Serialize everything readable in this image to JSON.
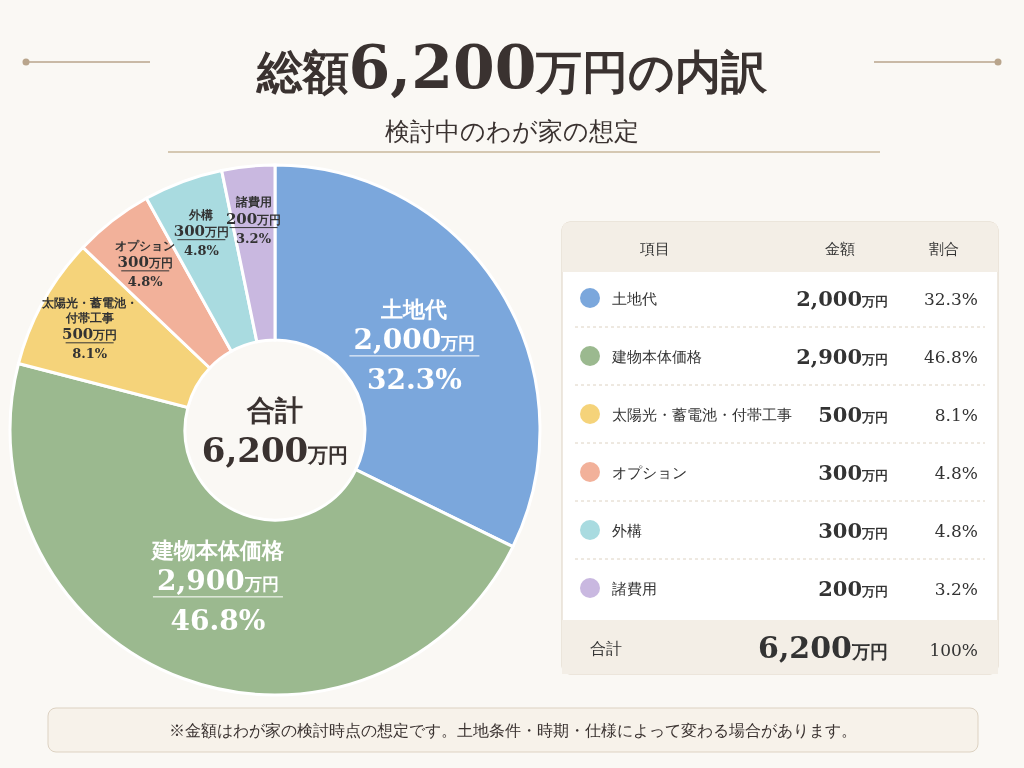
{
  "chart_data": [
    {
      "type": "donut",
      "title": "総額6,200万円の内訳",
      "subtitle": "検討中のわが家の想定",
      "categories": [
        "土地代",
        "建物本体価格",
        "太陽光・蓄電池・付帯工事",
        "オプション",
        "外構",
        "諸費用"
      ],
      "values": [
        2000,
        2900,
        500,
        300,
        300,
        200
      ],
      "colors": [
        "#7ba7dc",
        "#9bb98f",
        "#f5d37a",
        "#f2b19a",
        "#a9dbe0",
        "#c9b8e0"
      ],
      "value_labels": [
        "2,000万円",
        "2,900万円",
        "500万円",
        "300万円",
        "300万円",
        "200万円"
      ],
      "annotations": [
        "合計",
        "6,200万円",
        "※金額はわが家の検討時点の想定です。土地条件・時期・仕様によって変わる場合があります。",
        {
          "text": "32.3%",
          "x": "土地代"
        },
        {
          "text": "46.8%",
          "x": "建物本体価格"
        },
        {
          "text": "8.1%",
          "x": "太陽光・蓄電池・付帯工事"
        },
        {
          "text": "4.8%",
          "x": "オプション"
        },
        {
          "text": "4.8%",
          "x": "外構"
        },
        {
          "text": "3.2%",
          "x": "諸費用"
        }
      ]
    },
    {
      "type": "other",
      "categories": [
        "土地代",
        "建物本体価格",
        "太陽光・蓄電池・付帯工事",
        "オプション",
        "外構",
        "諸費用"
      ],
      "colors": [
        "#7ba7dc",
        "#9bb98f",
        "#f5d37a",
        "#f2b19a",
        "#a9dbe0",
        "#c9b8e0"
      ],
      "annotations": [
        "項目",
        "金額",
        "割合",
        "2,000万円",
        "32.3%",
        "2,900万円",
        "46.8%",
        "500万円",
        "8.1%",
        "300万円",
        "4.8%",
        "300万円",
        "4.8%",
        "200万円",
        "3.2%",
        "合計",
        "6,200万円",
        "100%"
      ]
    }
  ]
}
